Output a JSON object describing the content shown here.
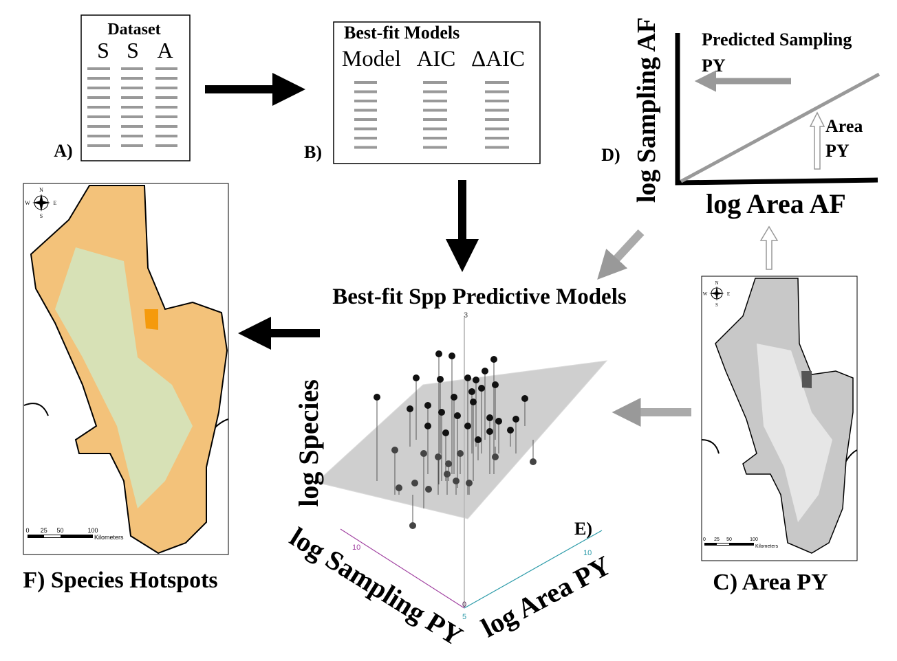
{
  "panel_a": {
    "label": "A)",
    "title": "Dataset",
    "columns": [
      "S",
      "S",
      "A"
    ]
  },
  "panel_b": {
    "label": "B)",
    "title": "Best-fit Models",
    "columns": [
      "Model",
      "AIC",
      "ΔAIC"
    ]
  },
  "panel_d": {
    "label": "D)",
    "y_axis": "log Sampling AF",
    "x_axis": "log Area AF",
    "annotations": [
      "Predicted Sampling",
      "PY",
      "Area",
      "PY"
    ]
  },
  "center_title": "Best-fit Spp Predictive Models",
  "panel_e": {
    "label": "E)",
    "z_axis": "log Species",
    "x_axis": "log Sampling PY",
    "y_axis": "log Area PY",
    "tick_labels": [
      "3",
      "10",
      "10",
      "0",
      "5"
    ]
  },
  "map": {
    "compass": [
      "N",
      "E",
      "S",
      "W"
    ],
    "scale_labels": [
      "0",
      "25",
      "50",
      "100"
    ],
    "scale_unit": "Kilometers"
  },
  "panel_f": {
    "caption": "F) Species Hotspots"
  },
  "panel_c": {
    "caption": "C) Area PY"
  }
}
